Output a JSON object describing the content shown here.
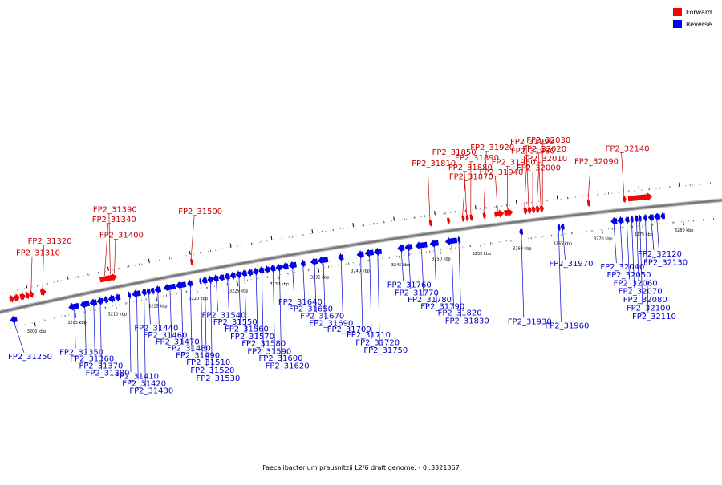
{
  "caption": "Faecalibacterium prausnitzii L2/6 draft genome. - 0..3321367",
  "legend": [
    {
      "label": "Forward",
      "color": "#ff0000"
    },
    {
      "label": "Reverse",
      "color": "#0000ff"
    }
  ],
  "colors": {
    "forward": "#ff0000",
    "forward_dark": "#cc0000",
    "reverse": "#0000ff",
    "reverse_dark": "#0000aa",
    "backbone": "#777777",
    "label_forward": "#cc0000",
    "label_reverse": "#0000cc"
  },
  "region": {
    "start_kbp": 3197,
    "end_kbp": 3283
  },
  "ticks": [
    "3200 kbp",
    "3205 kbp",
    "3210 kbp",
    "3215 kbp",
    "3220 kbp",
    "3225 kbp",
    "3230 kbp",
    "3235 kbp",
    "3240 kbp",
    "3245 kbp",
    "3250 kbp",
    "3255 kbp",
    "3260 kbp",
    "3265 kbp",
    "3270 kbp",
    "3275 kbp",
    "3280 kbp"
  ],
  "forward_genes": [
    {
      "start": 3197.7,
      "end": 3198.2
    },
    {
      "start": 3198.3,
      "end": 3198.9
    },
    {
      "start": 3199.0,
      "end": 3199.6
    },
    {
      "start": 3199.7,
      "end": 3200.1
    },
    {
      "start": 3200.2,
      "end": 3200.6
    },
    {
      "start": 3201.5,
      "end": 3202.1
    },
    {
      "start": 3208.8,
      "end": 3210.8
    },
    {
      "start": 3219.9,
      "end": 3220.2
    },
    {
      "start": 3249.2,
      "end": 3249.5
    },
    {
      "start": 3251.4,
      "end": 3251.7
    },
    {
      "start": 3253.2,
      "end": 3253.5
    },
    {
      "start": 3253.7,
      "end": 3254.0
    },
    {
      "start": 3254.2,
      "end": 3254.5
    },
    {
      "start": 3255.8,
      "end": 3256.1
    },
    {
      "start": 3257.2,
      "end": 3258.3
    },
    {
      "start": 3258.4,
      "end": 3259.4
    },
    {
      "start": 3260.8,
      "end": 3261.2
    },
    {
      "start": 3261.3,
      "end": 3261.7
    },
    {
      "start": 3261.8,
      "end": 3262.2
    },
    {
      "start": 3262.3,
      "end": 3262.7
    },
    {
      "start": 3262.8,
      "end": 3263.2
    },
    {
      "start": 3268.6,
      "end": 3268.9
    },
    {
      "start": 3273.0,
      "end": 3273.3
    },
    {
      "start": 3273.6,
      "end": 3276.5
    }
  ],
  "reverse_genes": [
    {
      "start": 3197.2,
      "end": 3198.0
    },
    {
      "start": 3204.4,
      "end": 3205.6
    },
    {
      "start": 3205.8,
      "end": 3206.9
    },
    {
      "start": 3207.0,
      "end": 3207.8
    },
    {
      "start": 3207.9,
      "end": 3208.6
    },
    {
      "start": 3208.7,
      "end": 3209.2
    },
    {
      "start": 3209.3,
      "end": 3210.0
    },
    {
      "start": 3210.1,
      "end": 3210.7
    },
    {
      "start": 3211.7,
      "end": 3212.0
    },
    {
      "start": 3212.2,
      "end": 3213.2
    },
    {
      "start": 3213.4,
      "end": 3213.9
    },
    {
      "start": 3214.0,
      "end": 3214.4
    },
    {
      "start": 3214.5,
      "end": 3214.9
    },
    {
      "start": 3215.0,
      "end": 3215.7
    },
    {
      "start": 3216.1,
      "end": 3217.5
    },
    {
      "start": 3217.6,
      "end": 3218.8
    },
    {
      "start": 3219.0,
      "end": 3219.6
    },
    {
      "start": 3220.5,
      "end": 3220.7
    },
    {
      "start": 3220.8,
      "end": 3221.4
    },
    {
      "start": 3221.5,
      "end": 3222.1
    },
    {
      "start": 3222.2,
      "end": 3222.8
    },
    {
      "start": 3222.9,
      "end": 3223.5
    },
    {
      "start": 3223.6,
      "end": 3224.2
    },
    {
      "start": 3224.3,
      "end": 3224.9
    },
    {
      "start": 3225.0,
      "end": 3225.6
    },
    {
      "start": 3225.7,
      "end": 3226.3
    },
    {
      "start": 3226.4,
      "end": 3227.0
    },
    {
      "start": 3227.1,
      "end": 3227.7
    },
    {
      "start": 3227.8,
      "end": 3228.4
    },
    {
      "start": 3228.5,
      "end": 3229.1
    },
    {
      "start": 3229.2,
      "end": 3229.8
    },
    {
      "start": 3229.9,
      "end": 3230.6
    },
    {
      "start": 3230.7,
      "end": 3231.4
    },
    {
      "start": 3231.5,
      "end": 3232.4
    },
    {
      "start": 3233.0,
      "end": 3233.5
    },
    {
      "start": 3234.2,
      "end": 3235.0
    },
    {
      "start": 3235.1,
      "end": 3236.3
    },
    {
      "start": 3237.6,
      "end": 3238.2
    },
    {
      "start": 3239.9,
      "end": 3240.7
    },
    {
      "start": 3240.9,
      "end": 3241.9
    },
    {
      "start": 3242.0,
      "end": 3242.9
    },
    {
      "start": 3244.9,
      "end": 3245.7
    },
    {
      "start": 3245.8,
      "end": 3246.7
    },
    {
      "start": 3247.1,
      "end": 3248.5
    },
    {
      "start": 3248.9,
      "end": 3249.9
    },
    {
      "start": 3250.8,
      "end": 3252.2
    },
    {
      "start": 3252.3,
      "end": 3252.6
    },
    {
      "start": 3259.9,
      "end": 3260.3
    },
    {
      "start": 3264.6,
      "end": 3264.9
    },
    {
      "start": 3265.0,
      "end": 3265.4
    },
    {
      "start": 3271.2,
      "end": 3271.9
    },
    {
      "start": 3272.0,
      "end": 3272.7
    },
    {
      "start": 3272.9,
      "end": 3273.4
    },
    {
      "start": 3273.6,
      "end": 3273.9
    },
    {
      "start": 3274.1,
      "end": 3274.5
    },
    {
      "start": 3274.6,
      "end": 3274.9
    },
    {
      "start": 3275.2,
      "end": 3275.6
    },
    {
      "start": 3275.8,
      "end": 3276.4
    },
    {
      "start": 3276.5,
      "end": 3277.2
    },
    {
      "start": 3277.3,
      "end": 3277.8
    }
  ],
  "forward_labels": [
    {
      "text": "FP2_31310",
      "kbp": 3200.4
    },
    {
      "text": "FP2_31320",
      "kbp": 3201.8
    },
    {
      "text": "FP2_31340",
      "kbp": 3209.4
    },
    {
      "text": "FP2_31390",
      "kbp": 3210.1
    },
    {
      "text": "FP2_31400",
      "kbp": 3210.6
    },
    {
      "text": "FP2_31500",
      "kbp": 3220.0
    },
    {
      "text": "FP2_31810",
      "kbp": 3249.3
    },
    {
      "text": "FP2_31850",
      "kbp": 3251.5
    },
    {
      "text": "FP2_31870",
      "kbp": 3253.3
    },
    {
      "text": "FP2_31880",
      "kbp": 3253.8
    },
    {
      "text": "FP2_31890",
      "kbp": 3254.3
    },
    {
      "text": "FP2_31920",
      "kbp": 3255.9
    },
    {
      "text": "FP2_31940",
      "kbp": 3257.6
    },
    {
      "text": "FP2_31950",
      "kbp": 3258.8
    },
    {
      "text": "FP2_31980",
      "kbp": 3260.9
    },
    {
      "text": "FP2_31990",
      "kbp": 3261.4
    },
    {
      "text": "FP2_32000",
      "kbp": 3261.9
    },
    {
      "text": "FP2_32010",
      "kbp": 3262.4
    },
    {
      "text": "FP2_32020",
      "kbp": 3262.9
    },
    {
      "text": "FP2_32030",
      "kbp": 3263.1
    },
    {
      "text": "FP2_32090",
      "kbp": 3268.7
    },
    {
      "text": "FP2_32140",
      "kbp": 3273.1
    }
  ],
  "reverse_labels": [
    {
      "text": "FP2_31250",
      "kbp": 3197.6
    },
    {
      "text": "FP2_31350",
      "kbp": 3205.0
    },
    {
      "text": "FP2_31360",
      "kbp": 3206.3
    },
    {
      "text": "FP2_31370",
      "kbp": 3207.4
    },
    {
      "text": "FP2_31380",
      "kbp": 3208.2
    },
    {
      "text": "FP2_31410",
      "kbp": 3211.8
    },
    {
      "text": "FP2_31420",
      "kbp": 3212.7
    },
    {
      "text": "FP2_31430",
      "kbp": 3213.6
    },
    {
      "text": "FP2_31440",
      "kbp": 3214.2
    },
    {
      "text": "FP2_31460",
      "kbp": 3215.3
    },
    {
      "text": "FP2_31470",
      "kbp": 3216.8
    },
    {
      "text": "FP2_31480",
      "kbp": 3218.2
    },
    {
      "text": "FP2_31490",
      "kbp": 3219.3
    },
    {
      "text": "FP2_31510",
      "kbp": 3220.6
    },
    {
      "text": "FP2_31520",
      "kbp": 3221.1
    },
    {
      "text": "FP2_31530",
      "kbp": 3221.8
    },
    {
      "text": "FP2_31540",
      "kbp": 3222.5
    },
    {
      "text": "FP2_31550",
      "kbp": 3223.9
    },
    {
      "text": "FP2_31560",
      "kbp": 3225.3
    },
    {
      "text": "FP2_31570",
      "kbp": 3226.0
    },
    {
      "text": "FP2_31580",
      "kbp": 3227.4
    },
    {
      "text": "FP2_31590",
      "kbp": 3228.1
    },
    {
      "text": "FP2_31600",
      "kbp": 3229.5
    },
    {
      "text": "FP2_31620",
      "kbp": 3230.3
    },
    {
      "text": "FP2_31640",
      "kbp": 3231.9
    },
    {
      "text": "FP2_31650",
      "kbp": 3233.2
    },
    {
      "text": "FP2_31670",
      "kbp": 3234.6
    },
    {
      "text": "FP2_31690",
      "kbp": 3235.7
    },
    {
      "text": "FP2_31700",
      "kbp": 3237.9
    },
    {
      "text": "FP2_31710",
      "kbp": 3240.3
    },
    {
      "text": "FP2_31720",
      "kbp": 3241.4
    },
    {
      "text": "FP2_31750",
      "kbp": 3242.4
    },
    {
      "text": "FP2_31760",
      "kbp": 3245.3
    },
    {
      "text": "FP2_31770",
      "kbp": 3246.2
    },
    {
      "text": "FP2_31780",
      "kbp": 3247.8
    },
    {
      "text": "FP2_31790",
      "kbp": 3249.4
    },
    {
      "text": "FP2_31820",
      "kbp": 3251.5
    },
    {
      "text": "FP2_31830",
      "kbp": 3252.4
    },
    {
      "text": "FP2_31930",
      "kbp": 3260.1
    },
    {
      "text": "FP2_31960",
      "kbp": 3264.7
    },
    {
      "text": "FP2_31970",
      "kbp": 3265.2
    },
    {
      "text": "FP2_32040",
      "kbp": 3271.5
    },
    {
      "text": "FP2_32050",
      "kbp": 3272.3
    },
    {
      "text": "FP2_32060",
      "kbp": 3273.1
    },
    {
      "text": "FP2_32070",
      "kbp": 3273.7
    },
    {
      "text": "FP2_32080",
      "kbp": 3274.3
    },
    {
      "text": "FP2_32100",
      "kbp": 3274.7
    },
    {
      "text": "FP2_32110",
      "kbp": 3275.4
    },
    {
      "text": "FP2_32120",
      "kbp": 3276.1
    },
    {
      "text": "FP2_32130",
      "kbp": 3276.8
    }
  ]
}
